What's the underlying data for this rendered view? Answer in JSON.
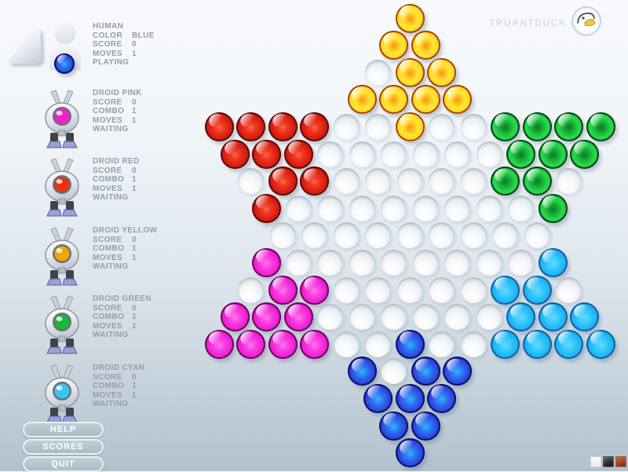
{
  "header": {
    "brand": "TRUANTDUCK",
    "logo_icon": "duck-icon"
  },
  "players": [
    {
      "id": "human",
      "name": "HUMAN",
      "icon": "human-avatar-icon",
      "marble": "blue",
      "stats": [
        {
          "label": "COLOR",
          "value": "BLUE"
        },
        {
          "label": "SCORE",
          "value": "0"
        },
        {
          "label": "MOVES",
          "value": "1"
        }
      ],
      "status": "PLAYING"
    },
    {
      "id": "droid-pink",
      "name": "DROID PINK",
      "icon": "robot-icon",
      "marble": "magenta",
      "stats": [
        {
          "label": "SCORE",
          "value": "0"
        },
        {
          "label": "COMBO",
          "value": "1"
        },
        {
          "label": "MOVES",
          "value": "1"
        }
      ],
      "status": "WAITING"
    },
    {
      "id": "droid-red",
      "name": "DROID RED",
      "icon": "robot-icon",
      "marble": "red",
      "stats": [
        {
          "label": "SCORE",
          "value": "0"
        },
        {
          "label": "COMBO",
          "value": "1"
        },
        {
          "label": "MOVES",
          "value": "1"
        }
      ],
      "status": "WAITING"
    },
    {
      "id": "droid-yellow",
      "name": "DROID YELLOW",
      "icon": "robot-icon",
      "marble": "yellow",
      "stats": [
        {
          "label": "SCORE",
          "value": "0"
        },
        {
          "label": "COMBO",
          "value": "1"
        },
        {
          "label": "MOVES",
          "value": "1"
        }
      ],
      "status": "WAITING"
    },
    {
      "id": "droid-green",
      "name": "DROID GREEN",
      "icon": "robot-icon",
      "marble": "green",
      "stats": [
        {
          "label": "SCORE",
          "value": "0"
        },
        {
          "label": "COMBO",
          "value": "1"
        },
        {
          "label": "MOVES",
          "value": "1"
        }
      ],
      "status": "WAITING"
    },
    {
      "id": "droid-cyan",
      "name": "DROID CYAN",
      "icon": "robot-icon",
      "marble": "cyan",
      "stats": [
        {
          "label": "SCORE",
          "value": "0"
        },
        {
          "label": "COMBO",
          "value": "1"
        },
        {
          "label": "MOVES",
          "value": "1"
        }
      ],
      "status": "WAITING"
    }
  ],
  "menu": [
    {
      "label": "HELP"
    },
    {
      "label": "SCORES"
    },
    {
      "label": "QUIT"
    }
  ],
  "board": {
    "rows": [
      "Y",
      "YY",
      ".YY",
      "YYYY",
      "RRRR..Y..GGGG",
      "RRR......GGG",
      ".RR.....GG.",
      "R........G",
      ".........",
      "M........C",
      ".MM.....CC.",
      "MMM......CCC",
      "MMMM..B..CCCC",
      "B.BB",
      "BBB",
      "BB",
      "B"
    ],
    "legend": {
      "Y": "yellow",
      "R": "red",
      "G": "green",
      "M": "magenta",
      "C": "cyan",
      "B": "blue",
      ".": "empty"
    },
    "palette": {
      "yellow": "#ffd526",
      "red": "#da2113",
      "green": "#1dc43e",
      "magenta": "#ee21d3",
      "cyan": "#22bbf2",
      "blue": "#2844da",
      "empty": "#e8edf1"
    },
    "eye_colors": {
      "magenta": "#f020c8",
      "red": "#e83210",
      "yellow": "#f0a800",
      "green": "#18b838",
      "cyan": "#38c4f4"
    }
  },
  "swatches": [
    {
      "name": "white",
      "color": "#f2f3f4"
    },
    {
      "name": "black",
      "color": "#2a2a2a"
    },
    {
      "name": "orange",
      "color": "#a2441f"
    }
  ]
}
